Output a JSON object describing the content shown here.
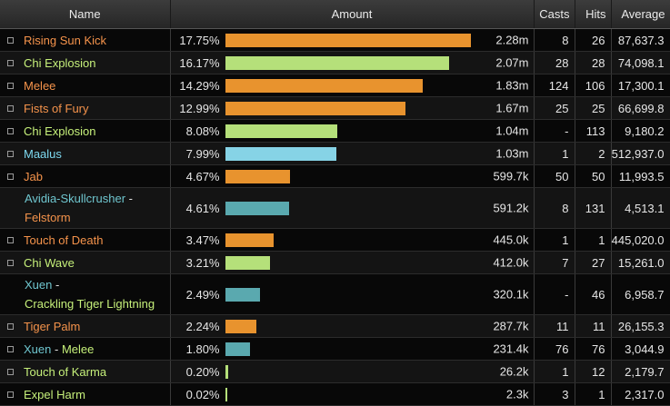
{
  "header": {
    "name": "Name",
    "amount": "Amount",
    "casts": "Casts",
    "hits": "Hits",
    "average": "Average"
  },
  "colors": {
    "orange": "#f5934b",
    "green": "#c6f07a",
    "blue": "#7dd8ef",
    "teal": "#6fc6cf",
    "bar_orange": "#e8932e",
    "bar_green": "#b5e07a",
    "bar_blue": "#86d3e6",
    "bar_teal": "#5aa9af"
  },
  "rows": [
    {
      "name_parts": [
        {
          "text": "Rising Sun Kick",
          "color": "orange"
        }
      ],
      "pct": "17.75%",
      "fraction": 0.1775,
      "amount": "2.28m",
      "casts": "8",
      "hits": "26",
      "average": "87,637.3",
      "bar": "bar_orange",
      "expandable": true
    },
    {
      "name_parts": [
        {
          "text": "Chi Explosion",
          "color": "green"
        }
      ],
      "pct": "16.17%",
      "fraction": 0.1617,
      "amount": "2.07m",
      "casts": "28",
      "hits": "28",
      "average": "74,098.1",
      "bar": "bar_green",
      "expandable": true
    },
    {
      "name_parts": [
        {
          "text": "Melee",
          "color": "orange"
        }
      ],
      "pct": "14.29%",
      "fraction": 0.1429,
      "amount": "1.83m",
      "casts": "124",
      "hits": "106",
      "average": "17,300.1",
      "bar": "bar_orange",
      "expandable": true
    },
    {
      "name_parts": [
        {
          "text": "Fists of Fury",
          "color": "orange"
        }
      ],
      "pct": "12.99%",
      "fraction": 0.1299,
      "amount": "1.67m",
      "casts": "25",
      "hits": "25",
      "average": "66,699.8",
      "bar": "bar_orange",
      "expandable": true
    },
    {
      "name_parts": [
        {
          "text": "Chi Explosion",
          "color": "green"
        }
      ],
      "pct": "8.08%",
      "fraction": 0.0808,
      "amount": "1.04m",
      "casts": "-",
      "hits": "113",
      "average": "9,180.2",
      "bar": "bar_green",
      "expandable": true
    },
    {
      "name_parts": [
        {
          "text": "Maalus",
          "color": "blue"
        }
      ],
      "pct": "7.99%",
      "fraction": 0.0799,
      "amount": "1.03m",
      "casts": "1",
      "hits": "2",
      "average": "512,937.0",
      "bar": "bar_blue",
      "expandable": true
    },
    {
      "name_parts": [
        {
          "text": "Jab",
          "color": "orange"
        }
      ],
      "pct": "4.67%",
      "fraction": 0.0467,
      "amount": "599.7k",
      "casts": "50",
      "hits": "50",
      "average": "11,993.5",
      "bar": "bar_orange",
      "expandable": true
    },
    {
      "name_parts": [
        {
          "text": "Avidia-Skullcrusher",
          "color": "teal"
        },
        {
          "text": " - ",
          "color": "white"
        },
        {
          "text": "Felstorm",
          "color": "orange",
          "newline": true
        }
      ],
      "pct": "4.61%",
      "fraction": 0.0461,
      "amount": "591.2k",
      "casts": "8",
      "hits": "131",
      "average": "4,513.1",
      "bar": "bar_teal",
      "expandable": false
    },
    {
      "name_parts": [
        {
          "text": "Touch of Death",
          "color": "orange"
        }
      ],
      "pct": "3.47%",
      "fraction": 0.0347,
      "amount": "445.0k",
      "casts": "1",
      "hits": "1",
      "average": "445,020.0",
      "bar": "bar_orange",
      "expandable": true
    },
    {
      "name_parts": [
        {
          "text": "Chi Wave",
          "color": "green"
        }
      ],
      "pct": "3.21%",
      "fraction": 0.0321,
      "amount": "412.0k",
      "casts": "7",
      "hits": "27",
      "average": "15,261.0",
      "bar": "bar_green",
      "expandable": true
    },
    {
      "name_parts": [
        {
          "text": "Xuen",
          "color": "teal"
        },
        {
          "text": " -",
          "color": "white"
        },
        {
          "text": "Crackling Tiger Lightning",
          "color": "green",
          "newline": true
        }
      ],
      "pct": "2.49%",
      "fraction": 0.0249,
      "amount": "320.1k",
      "casts": "-",
      "hits": "46",
      "average": "6,958.7",
      "bar": "bar_teal",
      "expandable": false
    },
    {
      "name_parts": [
        {
          "text": "Tiger Palm",
          "color": "orange"
        }
      ],
      "pct": "2.24%",
      "fraction": 0.0224,
      "amount": "287.7k",
      "casts": "11",
      "hits": "11",
      "average": "26,155.3",
      "bar": "bar_orange",
      "expandable": true
    },
    {
      "name_parts": [
        {
          "text": "Xuen",
          "color": "teal"
        },
        {
          "text": " - ",
          "color": "white"
        },
        {
          "text": "Melee",
          "color": "green"
        }
      ],
      "pct": "1.80%",
      "fraction": 0.018,
      "amount": "231.4k",
      "casts": "76",
      "hits": "76",
      "average": "3,044.9",
      "bar": "bar_teal",
      "expandable": true
    },
    {
      "name_parts": [
        {
          "text": "Touch of Karma",
          "color": "green"
        }
      ],
      "pct": "0.20%",
      "fraction": 0.002,
      "amount": "26.2k",
      "casts": "1",
      "hits": "12",
      "average": "2,179.7",
      "bar": "bar_green",
      "expandable": true
    },
    {
      "name_parts": [
        {
          "text": "Expel Harm",
          "color": "green"
        }
      ],
      "pct": "0.02%",
      "fraction": 0.0002,
      "amount": "2.3k",
      "casts": "3",
      "hits": "1",
      "average": "2,317.0",
      "bar": "bar_green",
      "expandable": true
    }
  ]
}
